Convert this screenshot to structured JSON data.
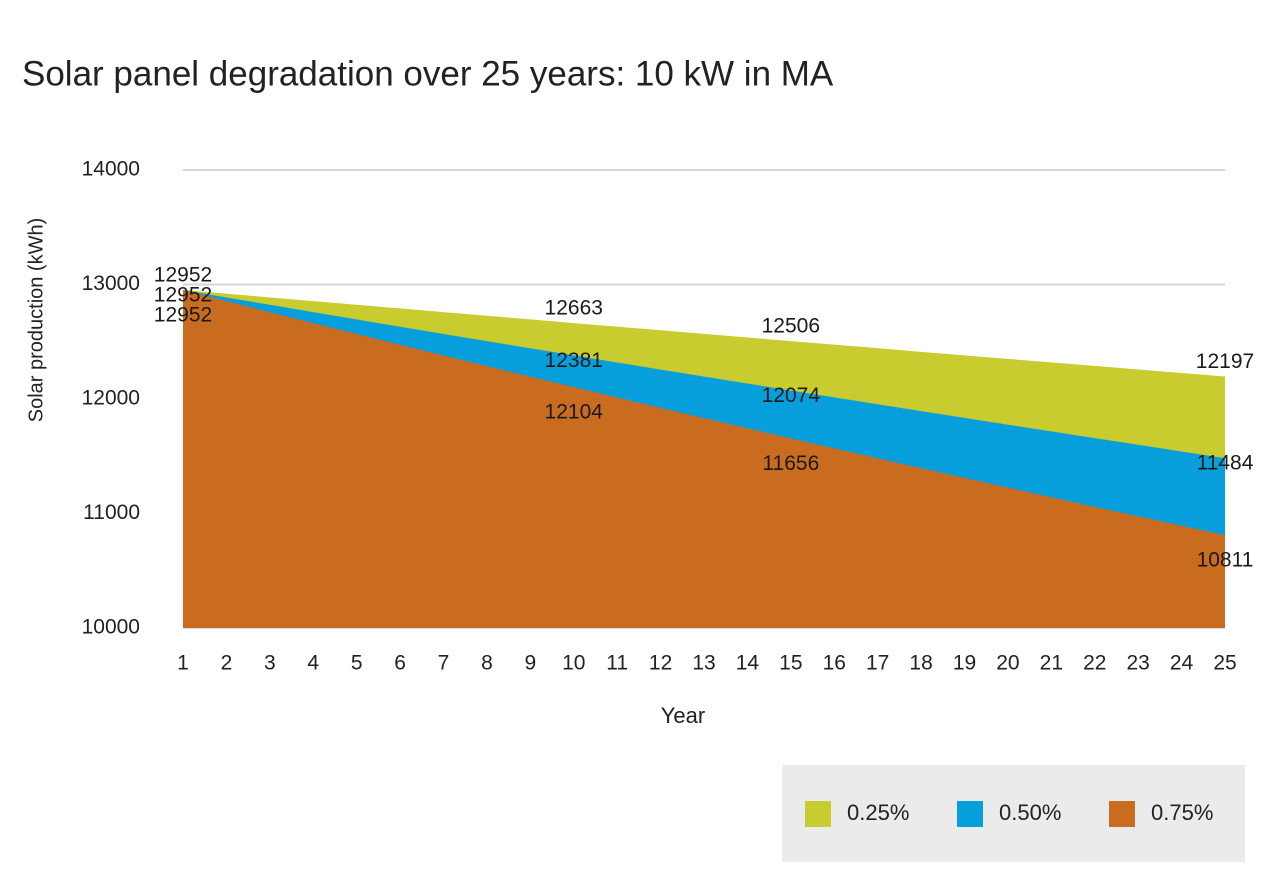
{
  "chart_data": {
    "type": "area",
    "title": "Solar panel degradation over 25 years: 10 kW in MA",
    "x_label": "Year",
    "y_label": "Solar production (kWh)",
    "categories": [
      "1",
      "2",
      "3",
      "4",
      "5",
      "6",
      "7",
      "8",
      "9",
      "10",
      "11",
      "12",
      "13",
      "14",
      "15",
      "16",
      "17",
      "18",
      "19",
      "20",
      "21",
      "22",
      "23",
      "24",
      "25"
    ],
    "series": [
      {
        "name": "0.25%",
        "color": "#c9cc2e",
        "values": [
          12952,
          12920,
          12887,
          12855,
          12823,
          12791,
          12759,
          12727,
          12695,
          12663,
          12632,
          12600,
          12569,
          12537,
          12506,
          12475,
          12444,
          12412,
          12381,
          12350,
          12320,
          12289,
          12258,
          12227,
          12197
        ]
      },
      {
        "name": "0.50%",
        "color": "#069fdc",
        "values": [
          12952,
          12887,
          12823,
          12759,
          12695,
          12631,
          12568,
          12505,
          12443,
          12381,
          12319,
          12257,
          12196,
          12135,
          12074,
          12014,
          11954,
          11894,
          11835,
          11775,
          11717,
          11658,
          11600,
          11542,
          11484
        ]
      },
      {
        "name": "0.75%",
        "color": "#c96c20",
        "values": [
          12952,
          12855,
          12758,
          12663,
          12568,
          12474,
          12380,
          12287,
          12195,
          12104,
          12013,
          11923,
          11833,
          11744,
          11656,
          11569,
          11482,
          11396,
          11311,
          11226,
          11142,
          11058,
          10975,
          10893,
          10811
        ]
      }
    ],
    "labeled_points": [
      0,
      9,
      14,
      24
    ],
    "ylim": [
      10000,
      14000
    ],
    "yticks": [
      10000,
      11000,
      12000,
      13000,
      14000
    ],
    "grid": true,
    "legend": "bottom-right"
  }
}
